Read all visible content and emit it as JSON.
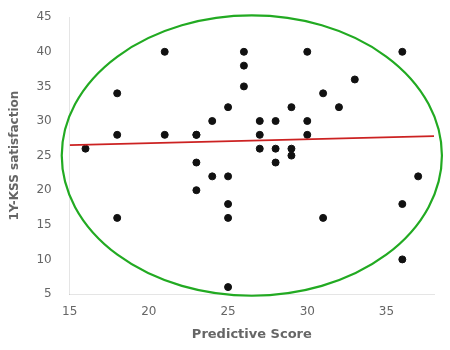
{
  "chart_data": {
    "type": "scatter",
    "xlabel": "Predictive Score",
    "ylabel": "1Y-KSS satisfaction",
    "xlim": [
      15,
      38
    ],
    "ylim": [
      5,
      45
    ],
    "xticks": [
      15,
      20,
      25,
      30,
      35
    ],
    "yticks": [
      5,
      10,
      15,
      20,
      25,
      30,
      35,
      40,
      45
    ],
    "grid": false,
    "series": [
      {
        "type": "scatter",
        "color": "#111111",
        "x": [
          16,
          18,
          18,
          21,
          18,
          21,
          23,
          23,
          23,
          23,
          24,
          24,
          25,
          25,
          25,
          25,
          25,
          26,
          26,
          26,
          27,
          27,
          27,
          28,
          28,
          28,
          29,
          29,
          29,
          30,
          30,
          30,
          31,
          31,
          32,
          33,
          36,
          36,
          36,
          37
        ],
        "values": [
          26,
          16,
          34,
          40,
          28,
          28,
          24,
          20,
          28,
          28,
          30,
          22,
          16,
          18,
          22,
          6,
          32,
          40,
          38,
          35,
          30,
          28,
          26,
          30,
          26,
          24,
          32,
          26,
          25,
          40,
          30,
          28,
          34,
          16,
          32,
          36,
          10,
          18,
          40,
          22
        ]
      },
      {
        "type": "line",
        "color": "#cc2222",
        "x": [
          15,
          38
        ],
        "values": [
          26.5,
          27.8
        ]
      }
    ],
    "ellipse": {
      "cx": 26.5,
      "cy": 25.0,
      "width": 24.0,
      "height": 40.5,
      "color": "#22aa22"
    }
  }
}
